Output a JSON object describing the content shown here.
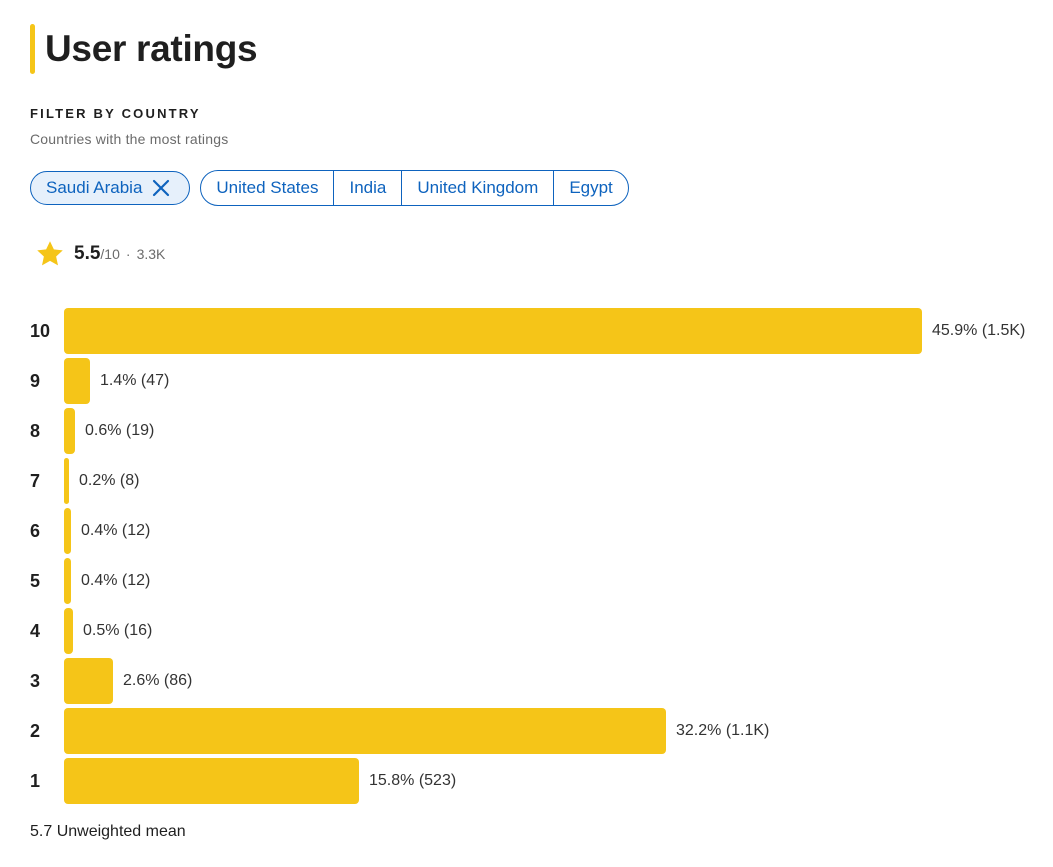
{
  "title": "User ratings",
  "filter": {
    "heading": "FILTER BY COUNTRY",
    "subheading": "Countries with the most ratings",
    "selected": "Saudi Arabia",
    "options": [
      "United States",
      "India",
      "United Kingdom",
      "Egypt"
    ]
  },
  "summary": {
    "rating": "5.5",
    "scale": "/10",
    "separator": "·",
    "count": "3.3K"
  },
  "colors": {
    "accent": "#f5c518",
    "link": "#0e63be"
  },
  "chart_data": {
    "type": "bar",
    "orientation": "horizontal",
    "categories": [
      "10",
      "9",
      "8",
      "7",
      "6",
      "5",
      "4",
      "3",
      "2",
      "1"
    ],
    "values": [
      45.9,
      1.4,
      0.6,
      0.2,
      0.4,
      0.4,
      0.5,
      2.6,
      32.2,
      15.8
    ],
    "labels": [
      "45.9% (1.5K)",
      "1.4% (47)",
      "0.6% (19)",
      "0.2% (8)",
      "0.4% (12)",
      "0.4% (12)",
      "0.5% (16)",
      "2.6% (86)",
      "32.2% (1.1K)",
      "15.8% (523)"
    ],
    "title": "",
    "xlabel": "",
    "ylabel": "",
    "xlim": [
      0,
      45.9
    ]
  },
  "footer": {
    "mean_text": "5.7 Unweighted mean"
  }
}
